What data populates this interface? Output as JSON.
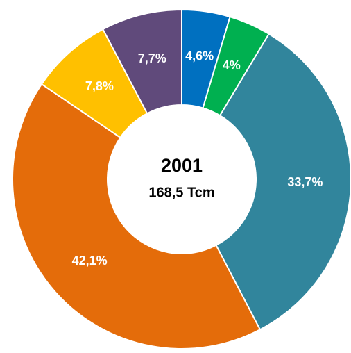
{
  "chart_data": {
    "type": "donut",
    "title": "2001",
    "subtitle": "168,5 Tcm",
    "values": [
      4.6,
      4,
      33.7,
      42.1,
      7.8,
      7.7
    ],
    "value_labels": [
      "4,6%",
      "4%",
      "33,7%",
      "42,1%",
      "7,8%",
      "7,7%"
    ],
    "colors": [
      "#0070c0",
      "#00b050",
      "#31859c",
      "#e46c0a",
      "#ffc000",
      "#604a7b"
    ]
  }
}
